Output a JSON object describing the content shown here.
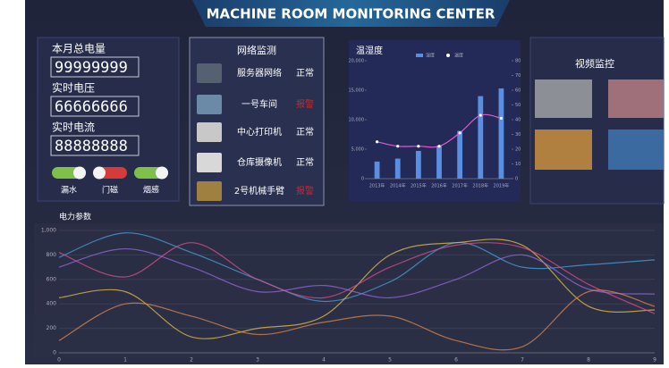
{
  "header": {
    "title": "MACHINE ROOM MONITORING CENTER"
  },
  "power": {
    "items": [
      {
        "label": "本月总电量",
        "value": "99999999"
      },
      {
        "label": "实时电压",
        "value": "66666666"
      },
      {
        "label": "实时电流",
        "value": "88888888"
      }
    ],
    "switches": [
      {
        "label": "漏水",
        "color": "#7ec04a"
      },
      {
        "label": "门磁",
        "color": "#d63b3b"
      },
      {
        "label": "烟感",
        "color": "#7ec04a"
      }
    ]
  },
  "network": {
    "title": "网络监测",
    "rows": [
      {
        "name": "服务器网络",
        "status": "正常",
        "color": "#ffffff"
      },
      {
        "name": "一号车间",
        "status": "报警",
        "color": "#e02020"
      },
      {
        "name": "中心打印机",
        "status": "正常",
        "color": "#ffffff"
      },
      {
        "name": "仓库摄像机",
        "status": "正常",
        "color": "#ffffff"
      },
      {
        "name": "2号机械手臂",
        "status": "报警",
        "color": "#e02020"
      }
    ]
  },
  "video": {
    "title": "视频监控"
  },
  "chart_data": [
    {
      "type": "bar",
      "title": "温湿度",
      "categories": [
        "2013年",
        "2014年",
        "2015年",
        "2016年",
        "2017年",
        "2018年",
        "2019年"
      ],
      "ylim": [
        0,
        20000
      ],
      "yticks": [
        0,
        {
          "value": 5000,
          "label": "5,000"
        },
        {
          "value": 10000,
          "label": "10,000"
        },
        {
          "value": 15000,
          "label": "15,000"
        },
        {
          "value": 20000,
          "label": "20,000"
        }
      ],
      "y2lim": [
        0,
        80
      ],
      "y2ticks": [
        0,
        10,
        20,
        30,
        40,
        50,
        60,
        70,
        80
      ],
      "series": [
        {
          "name": "湿度",
          "color": "#5a8ee0",
          "values": [
            2900,
            3400,
            4700,
            5600,
            8100,
            14000,
            15300
          ]
        },
        {
          "name": "温度",
          "type": "line",
          "axis": "y2",
          "color": "#e05ad0",
          "values": [
            25,
            22,
            22,
            22,
            31,
            43,
            41
          ]
        }
      ]
    },
    {
      "type": "line",
      "title": "电力参数",
      "smooth": true,
      "grid": true,
      "categories": [
        "0",
        "1",
        "2",
        "3",
        "4",
        "5",
        "6",
        "7",
        "8",
        "9"
      ],
      "ylim": [
        0,
        1000
      ],
      "yticks": [
        0,
        200,
        400,
        600,
        800,
        {
          "value": 1000,
          "label": "1,000"
        }
      ],
      "series": [
        {
          "color": "#4aa3e0",
          "values": [
            780,
            980,
            820,
            600,
            420,
            580,
            900,
            700,
            720,
            760
          ]
        },
        {
          "color": "#e8c24a",
          "values": [
            450,
            500,
            130,
            200,
            300,
            800,
            900,
            880,
            380,
            350
          ]
        },
        {
          "color": "#e0508a",
          "values": [
            820,
            620,
            900,
            600,
            450,
            700,
            880,
            860,
            560,
            320
          ]
        },
        {
          "color": "#9a6ae0",
          "values": [
            700,
            850,
            700,
            500,
            550,
            450,
            600,
            800,
            520,
            480
          ]
        },
        {
          "color": "#e08a4a",
          "values": [
            100,
            400,
            300,
            150,
            250,
            300,
            100,
            50,
            500,
            380
          ]
        }
      ]
    }
  ]
}
